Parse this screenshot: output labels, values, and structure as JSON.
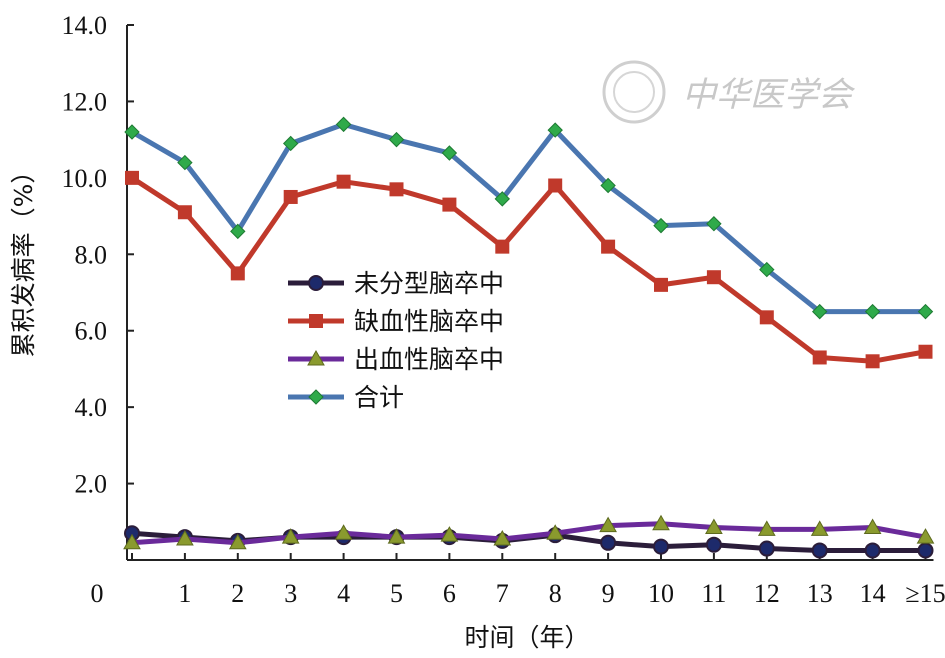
{
  "chart_data": {
    "type": "line",
    "title": "",
    "xlabel": "时间（年）",
    "ylabel": "累积发病率（%）",
    "x_categories": [
      "",
      "1",
      "2",
      "3",
      "4",
      "5",
      "6",
      "7",
      "8",
      "9",
      "10",
      "11",
      "12",
      "13",
      "14",
      "≥15"
    ],
    "origin_label": "0",
    "ylim": [
      0,
      14
    ],
    "y_ticks": [
      "2.0",
      "4.0",
      "6.0",
      "8.0",
      "10.0",
      "12.0",
      "14.0"
    ],
    "legend_position": "center-left",
    "watermark": "中华医学会",
    "series": [
      {
        "name": "未分型脑卒中",
        "color": "#2b1d3a",
        "marker": "circle",
        "values": [
          0.7,
          0.6,
          0.5,
          0.6,
          0.6,
          0.6,
          0.6,
          0.5,
          0.65,
          0.45,
          0.35,
          0.4,
          0.3,
          0.25,
          0.25,
          0.25
        ]
      },
      {
        "name": "缺血性脑卒中",
        "color": "#c0392b",
        "marker": "square",
        "values": [
          10.0,
          9.1,
          7.5,
          9.5,
          9.9,
          9.7,
          9.3,
          8.2,
          9.8,
          8.2,
          7.2,
          7.4,
          6.35,
          5.3,
          5.2,
          5.45
        ]
      },
      {
        "name": "出血性脑卒中",
        "color": "#6a2a9a",
        "marker": "triangle",
        "values": [
          0.45,
          0.55,
          0.45,
          0.6,
          0.7,
          0.6,
          0.65,
          0.55,
          0.7,
          0.9,
          0.95,
          0.85,
          0.8,
          0.8,
          0.85,
          0.6
        ]
      },
      {
        "name": "合计",
        "color": "#4a76b0",
        "marker": "diamond",
        "values": [
          11.2,
          10.4,
          8.6,
          10.9,
          11.4,
          11.0,
          10.65,
          9.45,
          11.25,
          9.8,
          8.75,
          8.8,
          7.6,
          6.5,
          6.5,
          6.5
        ]
      }
    ]
  }
}
